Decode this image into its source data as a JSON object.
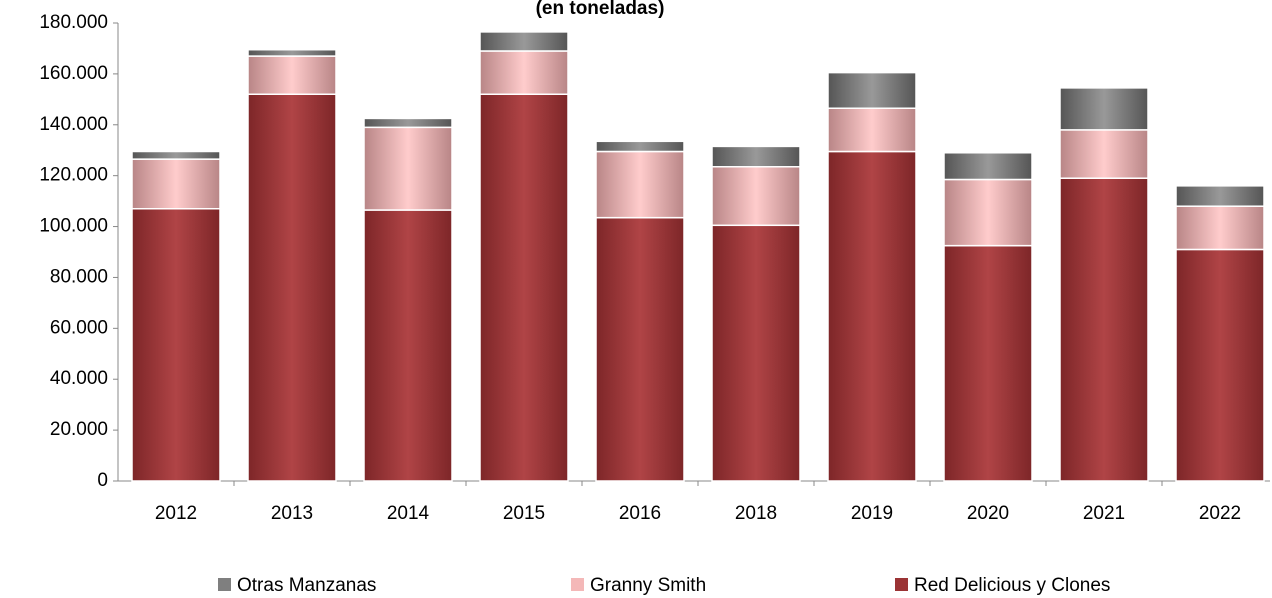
{
  "chart_data": {
    "type": "stacked_bar",
    "title": "(en toneladas)",
    "categories": [
      "2012",
      "2013",
      "2014",
      "2015",
      "2016",
      "2018",
      "2019",
      "2020",
      "2021",
      "2022"
    ],
    "series": [
      {
        "name": "Red Delicious y Clones",
        "color": "#9b3335",
        "values": [
          107000,
          152000,
          106500,
          152000,
          103500,
          100500,
          129500,
          92500,
          119000,
          91000
        ]
      },
      {
        "name": "Granny Smith",
        "color": "#f4b8b8",
        "values": [
          19500,
          15000,
          32500,
          17000,
          26000,
          23000,
          17000,
          26000,
          19000,
          17000
        ]
      },
      {
        "name": "Otras Manzanas",
        "color": "#7f7f7f",
        "values": [
          3000,
          2500,
          3500,
          7500,
          4000,
          8000,
          14000,
          10500,
          16500,
          8000
        ]
      }
    ],
    "ylim": [
      0,
      180000
    ],
    "yticks": [
      0,
      {
        "value": 20000,
        "label": "20.000"
      },
      {
        "value": 40000,
        "label": "40.000"
      },
      {
        "value": 60000,
        "label": "60.000"
      },
      {
        "value": 80000,
        "label": "80.000"
      },
      {
        "value": 100000,
        "label": "100.000"
      },
      {
        "value": 120000,
        "label": "120.000"
      },
      {
        "value": 140000,
        "label": "140.000"
      },
      {
        "value": 160000,
        "label": "160.000"
      },
      {
        "value": 180000,
        "label": "180.000"
      }
    ],
    "legend": "bottom"
  }
}
